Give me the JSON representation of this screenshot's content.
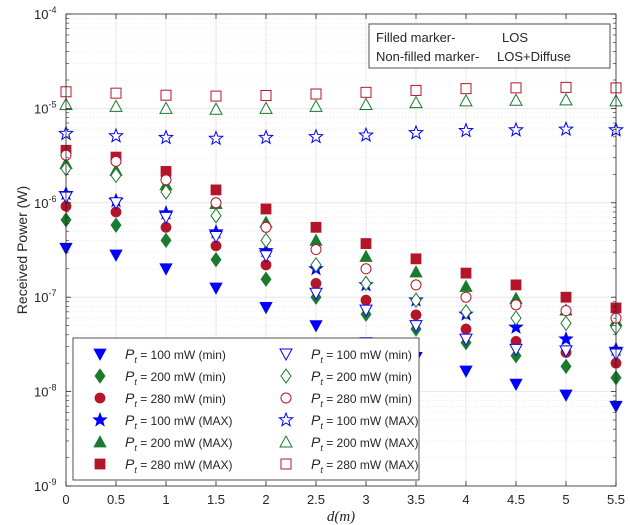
{
  "chart_data": {
    "type": "scatter",
    "xlabel": "d(m)",
    "ylabel": "Received Power (W)",
    "x_scale": "linear",
    "y_scale": "log",
    "xlim": [
      0,
      5.5
    ],
    "ylim": [
      1e-09,
      0.0001
    ],
    "x_ticks": [
      0,
      0.5,
      1,
      1.5,
      2,
      2.5,
      3,
      3.5,
      4,
      4.5,
      5,
      5.5
    ],
    "x_tick_labels": [
      "0",
      "0.5",
      "1",
      "1.5",
      "2",
      "2.5",
      "3",
      "3.5",
      "4",
      "4.5",
      "5",
      "5.5"
    ],
    "y_tick_base": "10",
    "y_tick_exponents": [
      "-9",
      "-8",
      "-7",
      "-6",
      "-5",
      "-4"
    ],
    "grid": true,
    "annotation": {
      "line1_label": "Filled marker-",
      "line1_value": "LOS",
      "line2_label": "Non-filled marker-",
      "line2_value": "LOS+Diffuse"
    },
    "legend_position": "bottom-left",
    "x": [
      0,
      0.5,
      1,
      1.5,
      2,
      2.5,
      3,
      3.5,
      4,
      4.5,
      5,
      5.5
    ],
    "series": [
      {
        "name": "P_t = 100 mW (min)",
        "sym": "P",
        "sub": "t",
        "rest": " = 100 mW (min)",
        "marker": "triangle-down",
        "filled": true,
        "color": "#0000ff",
        "values": [
          3.3e-07,
          2.8e-07,
          2e-07,
          1.25e-07,
          7.8e-08,
          5e-08,
          3.3e-08,
          2.3e-08,
          1.65e-08,
          1.2e-08,
          9.2e-09,
          7e-09
        ]
      },
      {
        "name": "P_t = 200 mW (min)",
        "sym": "P",
        "sub": "t",
        "rest": " = 200 mW (min)",
        "marker": "diamond",
        "filled": true,
        "color": "#1a7a2e",
        "values": [
          6.6e-07,
          5.8e-07,
          4e-07,
          2.5e-07,
          1.55e-07,
          1e-07,
          6.6e-08,
          4.6e-08,
          3.3e-08,
          2.4e-08,
          1.85e-08,
          1.4e-08
        ]
      },
      {
        "name": "P_t = 280 mW (min)",
        "sym": "P",
        "sub": "t",
        "rest": " = 280 mW (min)",
        "marker": "circle",
        "filled": true,
        "color": "#b5152b",
        "values": [
          9.2e-07,
          8e-07,
          5.5e-07,
          3.5e-07,
          2.2e-07,
          1.4e-07,
          9.3e-08,
          6.5e-08,
          4.6e-08,
          3.4e-08,
          2.6e-08,
          2e-08
        ]
      },
      {
        "name": "P_t = 100 mW (MAX)",
        "sym": "P",
        "sub": "t",
        "rest": " = 100 mW (MAX)",
        "marker": "star",
        "filled": true,
        "color": "#0000ff",
        "values": [
          1.25e-06,
          1.05e-06,
          7.8e-07,
          4.9e-07,
          3.1e-07,
          2e-07,
          1.35e-07,
          9.3e-08,
          6.6e-08,
          4.8e-08,
          3.6e-08,
          2.8e-08
        ]
      },
      {
        "name": "P_t = 200 mW (MAX)",
        "sym": "P",
        "sub": "t",
        "rest": " = 200 mW (MAX)",
        "marker": "triangle-up",
        "filled": true,
        "color": "#1a7a2e",
        "values": [
          2.6e-06,
          2.2e-06,
          1.55e-06,
          9.8e-07,
          6.2e-07,
          4e-07,
          2.7e-07,
          1.85e-07,
          1.3e-07,
          9.7e-08,
          7.3e-08,
          5.6e-08
        ]
      },
      {
        "name": "P_t = 280 mW (MAX)",
        "sym": "P",
        "sub": "t",
        "rest": " = 280 mW (MAX)",
        "marker": "square",
        "filled": true,
        "color": "#b5152b",
        "values": [
          3.6e-06,
          3.05e-06,
          2.15e-06,
          1.37e-06,
          8.6e-07,
          5.5e-07,
          3.7e-07,
          2.55e-07,
          1.8e-07,
          1.35e-07,
          1e-07,
          7.7e-08
        ]
      },
      {
        "name": "P_t = 100 mW (min)",
        "sym": "P",
        "sub": "t",
        "rest": " = 100 mW (min)",
        "marker": "triangle-down",
        "filled": false,
        "color": "#0000ff",
        "values": [
          1.15e-06,
          1e-06,
          7e-07,
          4.4e-07,
          2.75e-07,
          1.1e-07,
          7.3e-08,
          5e-08,
          3.6e-08,
          2.8e-08,
          2.7e-08,
          2.5e-08
        ]
      },
      {
        "name": "P_t = 200 mW (min)",
        "sym": "P",
        "sub": "t",
        "rest": " = 200 mW (min)",
        "marker": "diamond",
        "filled": false,
        "color": "#1a7a2e",
        "values": [
          2.3e-06,
          1.95e-06,
          1.3e-06,
          7.3e-07,
          4e-07,
          2.2e-07,
          1.4e-07,
          9.3e-08,
          7e-08,
          6e-08,
          5.3e-08,
          4.8e-08
        ]
      },
      {
        "name": "P_t = 280 mW (min)",
        "sym": "P",
        "sub": "t",
        "rest": " = 280 mW (min)",
        "marker": "circle",
        "filled": false,
        "color": "#b5152b",
        "values": [
          3.2e-06,
          2.75e-06,
          1.75e-06,
          1e-06,
          5.5e-07,
          3.2e-07,
          2e-07,
          1.35e-07,
          1e-07,
          8.3e-08,
          7.2e-08,
          6e-08
        ]
      },
      {
        "name": "P_t = 100 mW (MAX)",
        "sym": "P",
        "sub": "t",
        "rest": " = 100 mW (MAX)",
        "marker": "star",
        "filled": false,
        "color": "#0000ff",
        "values": [
          5.4e-06,
          5.1e-06,
          4.9e-06,
          4.8e-06,
          4.9e-06,
          5e-06,
          5.2e-06,
          5.5e-06,
          5.8e-06,
          5.9e-06,
          6e-06,
          5.9e-06
        ]
      },
      {
        "name": "P_t = 200 mW (MAX)",
        "sym": "P",
        "sub": "t",
        "rest": " = 200 mW (MAX)",
        "marker": "triangle-up",
        "filled": false,
        "color": "#1a7a2e",
        "values": [
          1.1e-05,
          1.05e-05,
          1e-05,
          9.8e-06,
          1e-05,
          1.05e-05,
          1.1e-05,
          1.15e-05,
          1.2e-05,
          1.22e-05,
          1.23e-05,
          1.2e-05
        ]
      },
      {
        "name": "P_t = 280 mW (MAX)",
        "sym": "P",
        "sub": "t",
        "rest": " = 280 mW (MAX)",
        "marker": "square",
        "filled": false,
        "color": "#b5152b",
        "values": [
          1.5e-05,
          1.45e-05,
          1.38e-05,
          1.35e-05,
          1.37e-05,
          1.42e-05,
          1.48e-05,
          1.55e-05,
          1.62e-05,
          1.65e-05,
          1.67e-05,
          1.65e-05
        ]
      }
    ]
  }
}
